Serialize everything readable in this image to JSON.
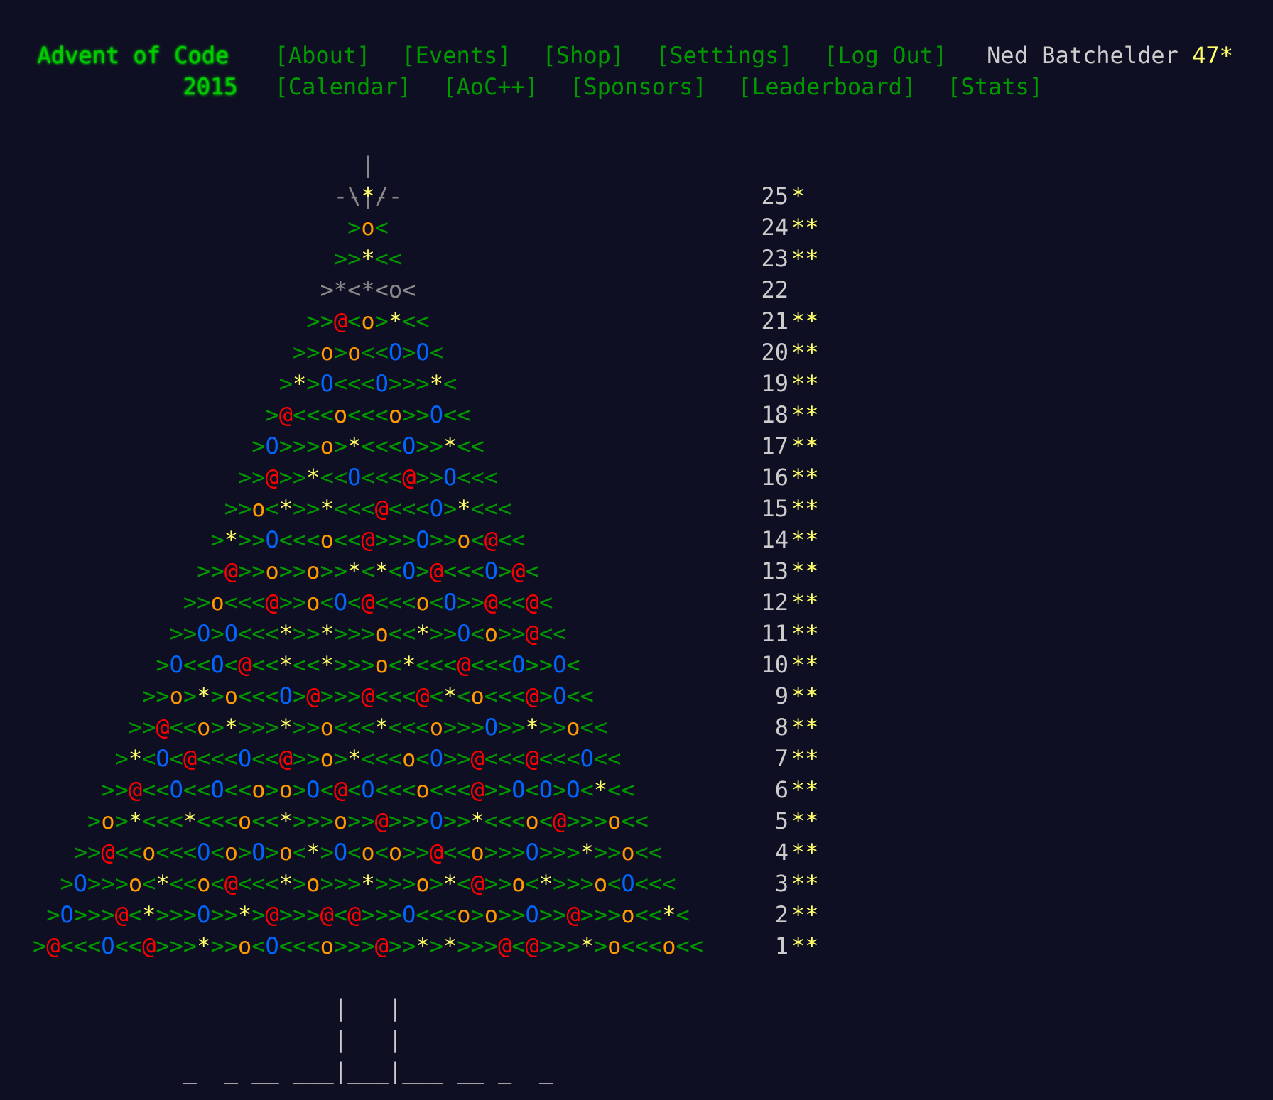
{
  "header": {
    "title": "Advent of Code",
    "year": "2015",
    "nav_row1": [
      "[About]",
      "[Events]",
      "[Shop]",
      "[Settings]",
      "[Log Out]"
    ],
    "nav_row2": [
      "[Calendar]",
      "[AoC++]",
      "[Sponsors]",
      "[Leaderboard]",
      "[Stats]"
    ],
    "user_name": "Ned Batchelder",
    "user_stars": "47*"
  },
  "tree_top": {
    "line1": "|",
    "line2": "\\|/",
    "line3_left": "--",
    "line3_star": "*",
    "line3_right": "--"
  },
  "days": [
    {
      "num": "25",
      "stars": "*",
      "pattern": "--*--"
    },
    {
      "num": "24",
      "stars": "**",
      "pattern": ">o<"
    },
    {
      "num": "23",
      "stars": "**",
      "pattern": ">>*<<"
    },
    {
      "num": "22",
      "stars": "",
      "pattern": ">*<*<o<"
    },
    {
      "num": "21",
      "stars": "**",
      "pattern": ">>@<o>*<<"
    },
    {
      "num": "20",
      "stars": "**",
      "pattern": ">>o>o<<O>O<"
    },
    {
      "num": "19",
      "stars": "**",
      "pattern": ">*>O<<<O>>>*<"
    },
    {
      "num": "18",
      "stars": "**",
      "pattern": ">@<<<o<<<o>>O<<"
    },
    {
      "num": "17",
      "stars": "**",
      "pattern": ">O>>>o>*<<<O>>*<<"
    },
    {
      "num": "16",
      "stars": "**",
      "pattern": ">>@>>*<<O<<<@>>O<<<"
    },
    {
      "num": "15",
      "stars": "**",
      "pattern": ">>o<*>>*<<<@<<<O>*<<<"
    },
    {
      "num": "14",
      "stars": "**",
      "pattern": ">*>>O<<<o<<@>>>O>>o<@<<"
    },
    {
      "num": "13",
      "stars": "**",
      "pattern": ">>@>>o>>o>>*<*<O>@<<<O>@<"
    },
    {
      "num": "12",
      "stars": "**",
      "pattern": ">>o<<<@>>o<O<@<<<o<O>>@<<@<"
    },
    {
      "num": "11",
      "stars": "**",
      "pattern": ">>O>O<<<*>>*>>>o<<*>>O<o>>@<<"
    },
    {
      "num": "10",
      "stars": "**",
      "pattern": ">O<<O<@<<*<<*>>>o<*<<<@<<<O>>O<"
    },
    {
      "num": "9",
      "stars": "**",
      "pattern": ">>o>*>o<<<O>@>>>@<<<@<*<o<<<@>O<<"
    },
    {
      "num": "8",
      "stars": "**",
      "pattern": ">>@<<o>*>>>*>>o<<<*<<<o>>>O>>*>>o<<"
    },
    {
      "num": "7",
      "stars": "**",
      "pattern": ">*<O<@<<<O<<@>>o>*<<<o<O>>@<<<@<<<O<<"
    },
    {
      "num": "6",
      "stars": "**",
      "pattern": ">>@<<O<<O<<o>o>O<@<O<<<o<<<@>>O<O>O<*<<"
    },
    {
      "num": "5",
      "stars": "**",
      "pattern": ">o>*<<<*<<<o<<*>>>o>>@>>>O>>*<<<o<@>>>o<<"
    },
    {
      "num": "4",
      "stars": "**",
      "pattern": ">>@<<o<<<O<o>O>o<*>O<o<o>>@<<o>>>O>>>*>>o<<"
    },
    {
      "num": "3",
      "stars": "**",
      "pattern": ">O>>>o<*<<o<@<<<*>o>>>*>>>o>*<@>>o<*>>>o<O<<<"
    },
    {
      "num": "2",
      "stars": "**",
      "pattern": ">O>>>@<*>>>O>>*>@>>>@<@>>>O<<<o>o>>O>>@>>>o<<*<"
    },
    {
      "num": "1",
      "stars": "**",
      "pattern": ">@<<<O<<@>>>*>>o<O<<<o>>>@>>*>*>>>@<@>>>*>o<<<o<<"
    }
  ],
  "trunk": {
    "line1": "|   |",
    "line2": "|   |",
    "ground": "_  _ __ ___|___|___ __ _  _"
  },
  "colors": {
    "background": "#0f0f23",
    "title_green": "#00cc00",
    "link_green": "#009900",
    "star_yellow": "#ffff66",
    "ornament_orange": "#ff9900",
    "ornament_red": "#ff0000",
    "ornament_blue": "#0066ff",
    "text_gray": "#cccccc"
  }
}
